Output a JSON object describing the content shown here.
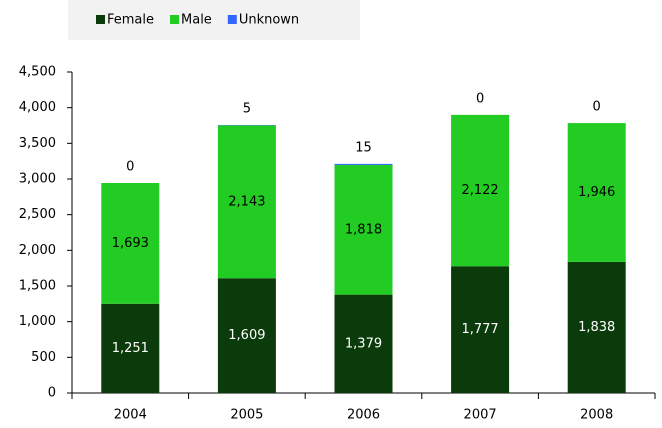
{
  "chart_data": {
    "type": "stacked_bar",
    "categories": [
      "2004",
      "2005",
      "2006",
      "2007",
      "2008"
    ],
    "series": [
      {
        "name": "Female",
        "color": "#0b3a0b",
        "values": [
          1251,
          1609,
          1379,
          1777,
          1838
        ],
        "value_labels": [
          "1,251",
          "1,609",
          "1,379",
          "1,777",
          "1,838"
        ]
      },
      {
        "name": "Male",
        "color": "#22cc22",
        "values": [
          1693,
          2143,
          1818,
          2122,
          1946
        ],
        "value_labels": [
          "1,693",
          "2,143",
          "1,818",
          "2,122",
          "1,946"
        ]
      },
      {
        "name": "Unknown",
        "color": "#3366ff",
        "values": [
          0,
          5,
          15,
          0,
          0
        ]
      }
    ],
    "ylim": [
      0,
      4500
    ],
    "yticks": [
      0,
      500,
      {
        "value": 1000,
        "label": "1,000"
      },
      {
        "value": 1500,
        "label": "1,500"
      },
      {
        "value": 2000,
        "label": "2,000"
      },
      {
        "value": 2500,
        "label": "2,500"
      },
      {
        "value": 3000,
        "label": "3,000"
      },
      {
        "value": 3500,
        "label": "3,500"
      },
      {
        "value": 4000,
        "label": "4,000"
      },
      {
        "value": 4500,
        "label": "4,500"
      }
    ],
    "legend": "top"
  }
}
